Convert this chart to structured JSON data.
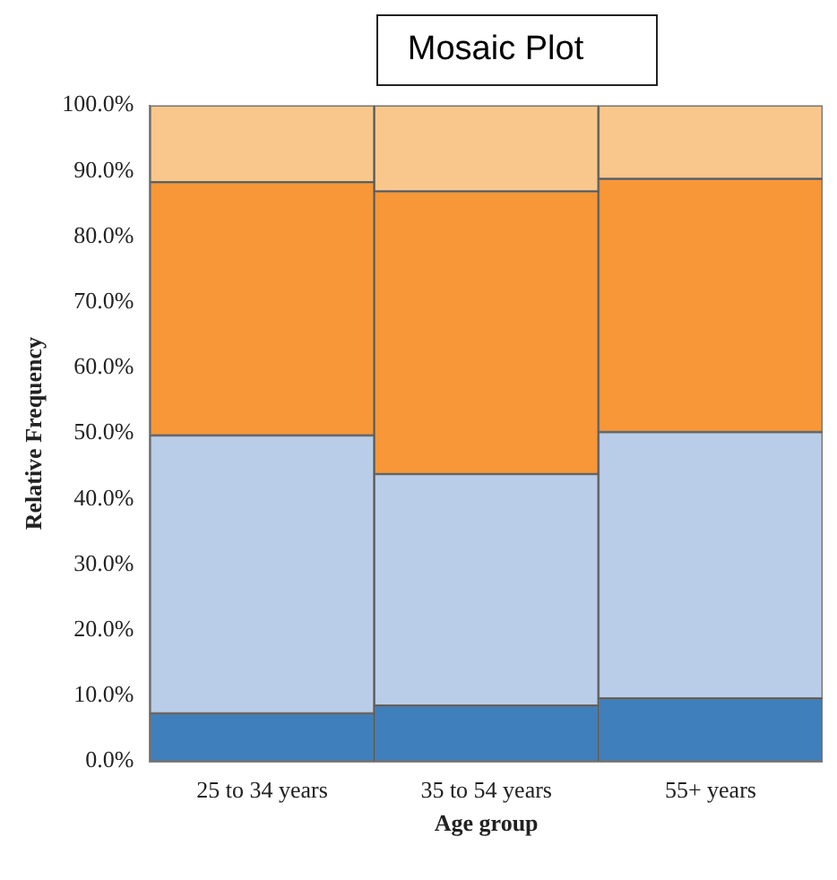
{
  "chart_data": {
    "type": "bar",
    "title": "Mosaic Plot",
    "xlabel": "Age group",
    "ylabel": "Relative Frequency",
    "stacked": true,
    "categories": [
      "25 to 34 years",
      "35 to 54 years",
      "55+ years"
    ],
    "series": [
      {
        "color": "#3f7fbb",
        "values": [
          7.3,
          8.5,
          9.6
        ]
      },
      {
        "color": "#b9cde9",
        "values": [
          42.4,
          35.3,
          40.6
        ]
      },
      {
        "color": "#f79737",
        "values": [
          38.6,
          43.1,
          38.6
        ]
      },
      {
        "color": "#f9c78b",
        "values": [
          11.7,
          13.1,
          11.2
        ]
      }
    ],
    "ylim": [
      0,
      100
    ],
    "yticks": [
      {
        "value": 0,
        "label": "0.0%"
      },
      {
        "value": 10,
        "label": "10.0%"
      },
      {
        "value": 20,
        "label": "20.0%"
      },
      {
        "value": 30,
        "label": "30.0%"
      },
      {
        "value": 40,
        "label": "40.0%"
      },
      {
        "value": 50,
        "label": "50.0%"
      },
      {
        "value": 60,
        "label": "60.0%"
      },
      {
        "value": 70,
        "label": "70.0%"
      },
      {
        "value": 80,
        "label": "80.0%"
      },
      {
        "value": 90,
        "label": "90.0%"
      },
      {
        "value": 100,
        "label": "100.0%"
      }
    ],
    "grid": false,
    "legend": false
  }
}
